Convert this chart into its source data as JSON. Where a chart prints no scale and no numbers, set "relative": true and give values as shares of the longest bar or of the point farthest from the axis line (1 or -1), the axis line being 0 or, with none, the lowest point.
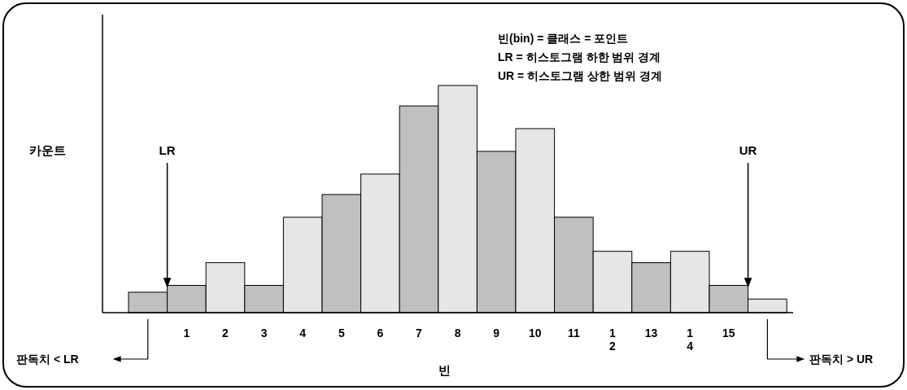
{
  "chart_data": {
    "type": "bar",
    "relative": true,
    "xlabel": "빈",
    "ylabel": "카운트",
    "categories": [
      null,
      "1",
      "2",
      "3",
      "4",
      "5",
      "6",
      "7",
      "8",
      "9",
      "10",
      "11",
      "1\n2",
      "13",
      "1\n4",
      "15",
      null
    ],
    "values": [
      0.09,
      0.12,
      0.22,
      0.12,
      0.42,
      0.52,
      0.61,
      0.91,
      1,
      0.71,
      0.81,
      0.42,
      0.27,
      0.22,
      0.27,
      0.12,
      0.06
    ],
    "colors": [
      "#c0c0c0",
      "#c0c0c0",
      "#e6e6e6",
      "#c0c0c0",
      "#e6e6e6",
      "#c0c0c0",
      "#e6e6e6",
      "#c0c0c0",
      "#e6e6e6",
      "#c0c0c0",
      "#e6e6e6",
      "#c0c0c0",
      "#e6e6e6",
      "#c0c0c0",
      "#e6e6e6",
      "#c0c0c0",
      "#e6e6e6"
    ],
    "annotations": [
      "빈(bin) = 클래스 = 포인트",
      "LR = 히스토그램 하한 범위 경계",
      "UR = 히스토그램 상한 범위 경계",
      "LR",
      "UR",
      "판독치 < LR",
      "판독치 > UR"
    ]
  }
}
